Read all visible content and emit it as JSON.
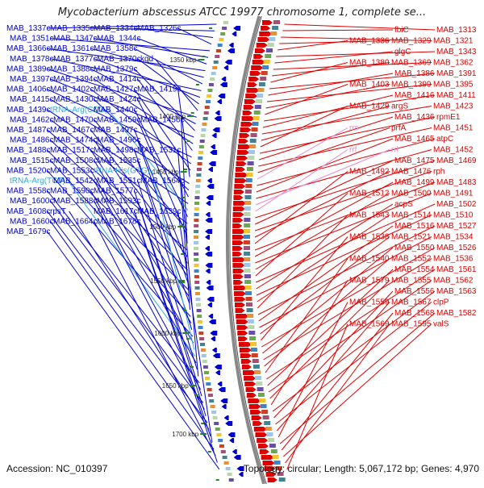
{
  "title": "Mycobacterium abscessus ATCC 19977 chromosome 1, complete se...",
  "accession": "Accession: NC_010397",
  "topology": "Topology: circular; Length: 5,067,172 bp; Genes: 4,970",
  "colors": {
    "minus_strand": "#0000cc",
    "plus_strand": "#dd0000",
    "rna": "#33aadd",
    "pink_rna": "#ee88cc",
    "backbone": "#888888",
    "ticks": "#228822"
  },
  "kbp_marks": [
    "1350 kbp",
    "1400 kbp",
    "1450 kbp",
    "1500 kbp",
    "1550 kbp",
    "1600 kbp",
    "1650 kbp",
    "1700 kbp"
  ],
  "left_labels": [
    {
      "text": "MAB_1337c",
      "kind": "gene"
    },
    {
      "text": "MAB_1335c",
      "kind": "gene"
    },
    {
      "text": "MAB_1334c",
      "kind": "gene"
    },
    {
      "text": "MAB_1326c",
      "kind": "gene"
    },
    {
      "text": "MAB_1351c",
      "kind": "gene"
    },
    {
      "text": "MAB_1347c",
      "kind": "gene"
    },
    {
      "text": "MAB_1344c",
      "kind": "gene"
    },
    {
      "text": "MAB_1366c",
      "kind": "gene"
    },
    {
      "text": "MAB_1361c",
      "kind": "gene"
    },
    {
      "text": "MAB_1358c",
      "kind": "gene"
    },
    {
      "text": "MAB_1378c",
      "kind": "gene"
    },
    {
      "text": "MAB_1377c",
      "kind": "gene"
    },
    {
      "text": "MAB_1370c",
      "kind": "gene"
    },
    {
      "text": "kgd",
      "kind": "gene"
    },
    {
      "text": "MAB_1389c",
      "kind": "gene"
    },
    {
      "text": "MAB_1388c",
      "kind": "gene"
    },
    {
      "text": "MAB_1379c",
      "kind": "gene"
    },
    {
      "text": "MAB_1397c",
      "kind": "gene"
    },
    {
      "text": "MAB_1394c",
      "kind": "gene"
    },
    {
      "text": "MAB_1414c",
      "kind": "gene"
    },
    {
      "text": "MAB_1406c",
      "kind": "gene"
    },
    {
      "text": "MAB_1402c",
      "kind": "gene"
    },
    {
      "text": "MAB_1427c",
      "kind": "gene"
    },
    {
      "text": "MAB_1419c",
      "kind": "gene"
    },
    {
      "text": "MAB_1415c",
      "kind": "gene"
    },
    {
      "text": "MAB_1430c",
      "kind": "gene"
    },
    {
      "text": "MAB_1424c",
      "kind": "gene"
    },
    {
      "text": "MAB_1439c",
      "kind": "gene"
    },
    {
      "text": "tRNA-Arg(CCG)",
      "kind": "rna"
    },
    {
      "text": "MAB_1440c",
      "kind": "gene"
    },
    {
      "text": "MAB_1462c",
      "kind": "gene"
    },
    {
      "text": "MAB_1470c",
      "kind": "gene"
    },
    {
      "text": "MAB_1459c",
      "kind": "gene"
    },
    {
      "text": "MAB_1456c",
      "kind": "gene"
    },
    {
      "text": "MAB_1487c",
      "kind": "gene"
    },
    {
      "text": "MAB_1467c",
      "kind": "gene"
    },
    {
      "text": "MAB_1497c",
      "kind": "gene"
    },
    {
      "text": "MAB_1486c",
      "kind": "gene"
    },
    {
      "text": "MAB_1474c",
      "kind": "gene"
    },
    {
      "text": "MAB_1496c",
      "kind": "gene"
    },
    {
      "text": "MAB_1488c",
      "kind": "gene"
    },
    {
      "text": "MAB_1517c",
      "kind": "gene"
    },
    {
      "text": "MAB_1498c",
      "kind": "gene"
    },
    {
      "text": "MAB_1531c",
      "kind": "gene"
    },
    {
      "text": "MAB_1515c",
      "kind": "gene"
    },
    {
      "text": "MAB_1508c",
      "kind": "gene"
    },
    {
      "text": "MAB_1535c",
      "kind": "gene"
    },
    {
      "text": "MAB_1520c",
      "kind": "gene"
    },
    {
      "text": "MAB_1553c",
      "kind": "gene"
    },
    {
      "text": "tRNA-His(GTG)",
      "kind": "rna"
    },
    {
      "text": "tRNA-Arg(TCT)",
      "kind": "rna"
    },
    {
      "text": "MAB_1542c",
      "kind": "gene"
    },
    {
      "text": "MAB_1551c",
      "kind": "gene"
    },
    {
      "text": "MAB_1564c",
      "kind": "gene"
    },
    {
      "text": "MAB_1558c",
      "kind": "gene"
    },
    {
      "text": "MAB_1590c",
      "kind": "gene"
    },
    {
      "text": "MAB_1577c",
      "kind": "gene"
    },
    {
      "text": "MAB_1600c",
      "kind": "gene"
    },
    {
      "text": "MAB_1588c",
      "kind": "gene"
    },
    {
      "text": "MAB_1593c",
      "kind": "gene"
    },
    {
      "text": "MAB_1608c",
      "kind": "gene"
    },
    {
      "text": "rpsT",
      "kind": "gene"
    },
    {
      "text": "MAB_1617c",
      "kind": "gene"
    },
    {
      "text": "MAB_1639c",
      "kind": "gene"
    },
    {
      "text": "MAB_1660c",
      "kind": "gene"
    },
    {
      "text": "MAB_1664c",
      "kind": "gene"
    },
    {
      "text": "MAB_1678c",
      "kind": "gene"
    },
    {
      "text": "MAB_1679c",
      "kind": "gene"
    }
  ],
  "right_labels": [
    {
      "text": "MAB_1313",
      "kind": "gene"
    },
    {
      "text": "fbiC",
      "kind": "gene"
    },
    {
      "text": "MAB_1321",
      "kind": "gene"
    },
    {
      "text": "MAB_1329",
      "kind": "gene"
    },
    {
      "text": "MAB_1336",
      "kind": "gene"
    },
    {
      "text": "MAB_1343",
      "kind": "gene"
    },
    {
      "text": "glgC",
      "kind": "gene"
    },
    {
      "text": "MAB_1362",
      "kind": "gene"
    },
    {
      "text": "MAB_1369",
      "kind": "gene"
    },
    {
      "text": "MAB_1380",
      "kind": "gene"
    },
    {
      "text": "MAB_1391",
      "kind": "gene"
    },
    {
      "text": "MAB_1386",
      "kind": "gene"
    },
    {
      "text": "MAB_1395",
      "kind": "gene"
    },
    {
      "text": "MAB_1399",
      "kind": "gene"
    },
    {
      "text": "MAB_1403",
      "kind": "gene"
    },
    {
      "text": "MAB_1411",
      "kind": "gene"
    },
    {
      "text": "MAB_1416",
      "kind": "gene"
    },
    {
      "text": "MAB_1423",
      "kind": "gene"
    },
    {
      "text": "argS",
      "kind": "gene"
    },
    {
      "text": "MAB_1429",
      "kind": "gene"
    },
    {
      "text": "rpmE1",
      "kind": "gene"
    },
    {
      "text": "MAB_1436",
      "kind": "gene"
    },
    {
      "text": "MAB_1451",
      "kind": "gene"
    },
    {
      "text": "prfA",
      "kind": "gene"
    },
    {
      "text": "rrs",
      "kind": "pink"
    },
    {
      "text": "atpC",
      "kind": "gene"
    },
    {
      "text": "MAB_1465",
      "kind": "gene"
    },
    {
      "text": "MAB_1452",
      "kind": "gene"
    },
    {
      "text": "rrl",
      "kind": "pink"
    },
    {
      "text": "rrf",
      "kind": "pink"
    },
    {
      "text": "MAB_1469",
      "kind": "gene"
    },
    {
      "text": "MAB_1475",
      "kind": "gene"
    },
    {
      "text": "rph",
      "kind": "gene"
    },
    {
      "text": "MAB_1476",
      "kind": "gene"
    },
    {
      "text": "MAB_1492",
      "kind": "gene"
    },
    {
      "text": "MAB_1483",
      "kind": "gene"
    },
    {
      "text": "MAB_1499",
      "kind": "gene"
    },
    {
      "text": "MAB_1491",
      "kind": "gene"
    },
    {
      "text": "MAB_1500",
      "kind": "gene"
    },
    {
      "text": "MAB_1512",
      "kind": "gene"
    },
    {
      "text": "MAB_1502",
      "kind": "gene"
    },
    {
      "text": "acpS",
      "kind": "gene"
    },
    {
      "text": "MAB_1510",
      "kind": "gene"
    },
    {
      "text": "MAB_1514",
      "kind": "gene"
    },
    {
      "text": "MAB_1543",
      "kind": "gene"
    },
    {
      "text": "MAB_1527",
      "kind": "gene"
    },
    {
      "text": "MAB_1516",
      "kind": "gene"
    },
    {
      "text": "MAB_1534",
      "kind": "gene"
    },
    {
      "text": "MAB_1521",
      "kind": "gene"
    },
    {
      "text": "MAB_1538",
      "kind": "gene"
    },
    {
      "text": "MAB_1526",
      "kind": "gene"
    },
    {
      "text": "MAB_1550",
      "kind": "gene"
    },
    {
      "text": "MAB_1536",
      "kind": "gene"
    },
    {
      "text": "MAB_1552",
      "kind": "gene"
    },
    {
      "text": "MAB_1540",
      "kind": "gene"
    },
    {
      "text": "MAB_1561",
      "kind": "gene"
    },
    {
      "text": "MAB_1554",
      "kind": "gene"
    },
    {
      "text": "MAB_1562",
      "kind": "gene"
    },
    {
      "text": "MAB_1555",
      "kind": "gene"
    },
    {
      "text": "MAB_1579",
      "kind": "gene"
    },
    {
      "text": "MAB_1563",
      "kind": "gene"
    },
    {
      "text": "MAB_1556",
      "kind": "gene"
    },
    {
      "text": "clpP",
      "kind": "gene"
    },
    {
      "text": "MAB_1567",
      "kind": "gene"
    },
    {
      "text": "MAB_1559",
      "kind": "gene"
    },
    {
      "text": "MAB_1582",
      "kind": "gene"
    },
    {
      "text": "MAB_1568",
      "kind": "gene"
    },
    {
      "text": "valS",
      "kind": "gene"
    },
    {
      "text": "MAB_1595",
      "kind": "gene"
    },
    {
      "text": "MAB_1569",
      "kind": "gene"
    }
  ]
}
